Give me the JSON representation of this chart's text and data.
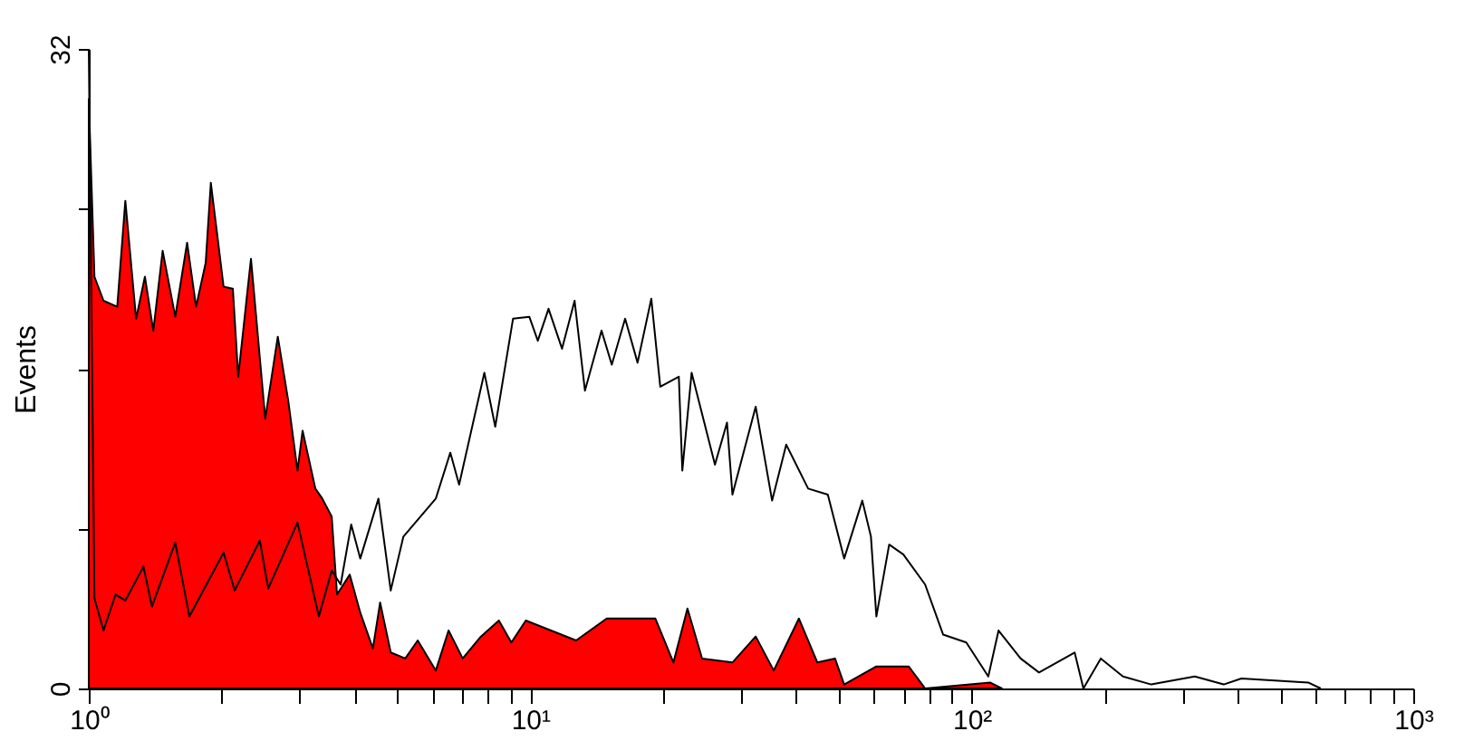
{
  "chart_data": {
    "type": "area",
    "ylabel": "Events",
    "log": "x",
    "xlim": [
      1,
      1000
    ],
    "ylim": [
      0,
      32
    ],
    "xticks": [
      {
        "value": 1,
        "label": "10⁰"
      },
      {
        "value": 2,
        "label": null
      },
      {
        "value": 3,
        "label": null
      },
      {
        "value": 4,
        "label": null
      },
      {
        "value": 5,
        "label": null
      },
      {
        "value": 6,
        "label": null
      },
      {
        "value": 7,
        "label": null
      },
      {
        "value": 8,
        "label": null
      },
      {
        "value": 9,
        "label": null
      },
      {
        "value": 10,
        "label": "10¹"
      },
      {
        "value": 20,
        "label": null
      },
      {
        "value": 30,
        "label": null
      },
      {
        "value": 40,
        "label": null
      },
      {
        "value": 50,
        "label": null
      },
      {
        "value": 60,
        "label": null
      },
      {
        "value": 70,
        "label": null
      },
      {
        "value": 80,
        "label": null
      },
      {
        "value": 90,
        "label": null
      },
      {
        "value": 100,
        "label": "10²"
      },
      {
        "value": 200,
        "label": null
      },
      {
        "value": 300,
        "label": null
      },
      {
        "value": 400,
        "label": null
      },
      {
        "value": 500,
        "label": null
      },
      {
        "value": 600,
        "label": null
      },
      {
        "value": 700,
        "label": null
      },
      {
        "value": 800,
        "label": null
      },
      {
        "value": 900,
        "label": null
      },
      {
        "value": 1000,
        "label": "10³"
      }
    ],
    "yticks": [
      0,
      {
        "value": 8,
        "label": null
      },
      {
        "value": 16,
        "label": null
      },
      {
        "value": 24,
        "label": null
      },
      32
    ],
    "grid": false,
    "series": [
      {
        "color": "#ff0000",
        "x": [
          1,
          1.03,
          1.08,
          1.16,
          1.21,
          1.28,
          1.34,
          1.4,
          1.47,
          1.57,
          1.67,
          1.75,
          1.84,
          1.89,
          2.02,
          2.12,
          2.18,
          2.33,
          2.51,
          2.68,
          2.83,
          2.97,
          3.05,
          3.26,
          3.38,
          3.55,
          3.65,
          3.9,
          4.12,
          4.4,
          4.57,
          4.83,
          5.21,
          5.56,
          6.11,
          6.53,
          7.03,
          7.73,
          8.49,
          9.06,
          9.77,
          12.7,
          14.9,
          19.2,
          21.1,
          22.7,
          24.5,
          28.7,
          32.4,
          35.6,
          40.6,
          44.7,
          49.0,
          51.4,
          60.8,
          72.0,
          78.4,
          110,
          117
        ],
        "values": [
          29.5,
          20.6,
          19.4,
          19.1,
          24.4,
          18.5,
          20.6,
          17.9,
          21.9,
          18.6,
          22.3,
          19.1,
          21.3,
          25.3,
          20.1,
          20.0,
          15.6,
          21.5,
          13.5,
          17.6,
          14.4,
          10.9,
          12.9,
          10.0,
          9.5,
          8.6,
          4.7,
          5.7,
          3.8,
          2.0,
          4.3,
          1.8,
          1.5,
          2.4,
          0.9,
          2.9,
          1.5,
          2.6,
          3.4,
          2.3,
          3.4,
          2.4,
          3.5,
          3.5,
          1.3,
          4.0,
          1.5,
          1.3,
          2.6,
          0.9,
          3.5,
          1.3,
          1.5,
          0.2,
          1.1,
          1.1,
          0,
          0.3,
          0
        ]
      },
      {
        "type": "line",
        "color": "#000000",
        "x": [
          1,
          1.03,
          1.08,
          1.15,
          1.21,
          1.33,
          1.39,
          1.57,
          1.69,
          2.02,
          2.14,
          2.44,
          2.55,
          2.97,
          3.32,
          3.55,
          3.72,
          3.93,
          4.12,
          4.53,
          4.83,
          5.16,
          6.11,
          6.59,
          6.9,
          7.87,
          8.33,
          9.14,
          9.95,
          10.4,
          11.0,
          11.8,
          12.6,
          13.3,
          14.5,
          15.3,
          16.4,
          17.5,
          18.8,
          19.7,
          21.7,
          22.1,
          23.2,
          26.2,
          27.9,
          28.7,
          32.4,
          35.3,
          38.0,
          42.6,
          47.2,
          51.4,
          56.5,
          59.1,
          60.8,
          65.0,
          70.0,
          78.4,
          86.1,
          97.2,
          109,
          115,
          129,
          142,
          171,
          179,
          196,
          220,
          255,
          320,
          372,
          408,
          578,
          617
        ],
        "values": [
          32,
          4.5,
          2.9,
          4.7,
          4.4,
          6.1,
          4.1,
          7.3,
          3.6,
          6.8,
          4.9,
          7.4,
          5.0,
          8.3,
          3.6,
          5.9,
          5.2,
          8.2,
          6.5,
          9.5,
          4.9,
          7.6,
          9.5,
          11.8,
          10.2,
          15.8,
          13.1,
          18.5,
          18.6,
          17.4,
          19.0,
          17.0,
          19.4,
          14.9,
          17.9,
          16.2,
          18.5,
          16.3,
          19.5,
          15.1,
          15.6,
          10.9,
          15.8,
          11.2,
          13.3,
          9.7,
          14.1,
          9.4,
          12.2,
          10.0,
          9.7,
          6.5,
          9.4,
          7.6,
          3.6,
          7.2,
          6.7,
          5.2,
          2.7,
          2.3,
          0.6,
          2.9,
          1.5,
          0.8,
          1.8,
          0,
          1.5,
          0.6,
          0.2,
          0.6,
          0.2,
          0.5,
          0.3,
          0
        ]
      }
    ]
  }
}
